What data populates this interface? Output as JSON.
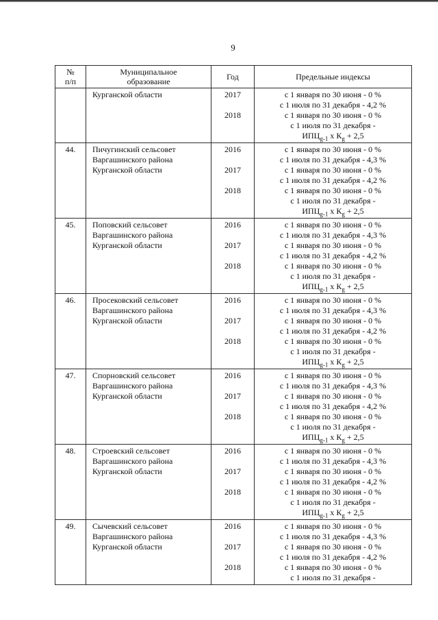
{
  "page": {
    "number": "9"
  },
  "table": {
    "headers": {
      "num_line1": "№",
      "num_line2": "п/п",
      "municipality_line1": "Муниципальное",
      "municipality_line2": "образование",
      "year": "Год",
      "indices": "Предельные индексы"
    },
    "rows": [
      {
        "num": "",
        "municipality": [
          "Курганской области"
        ],
        "years": [
          "2017",
          "",
          "2018"
        ],
        "lines": [
          "с 1 января по 30 июня - 0 %",
          "с 1 июля по 31 декабря - 4,2 %",
          "с 1 января по 30 июня - 0 %",
          "с 1 июля по 31 декабря -",
          {
            "formula": [
              {
                "t": "ИПЦ"
              },
              {
                "t": "g-1",
                "sub": true
              },
              {
                "t": " х К"
              },
              {
                "t": "g",
                "sub": true
              },
              {
                "t": " + 2,5"
              }
            ]
          }
        ]
      },
      {
        "num": "44.",
        "municipality": [
          "Пичугинский сельсовет",
          "Варгашинского района",
          "Курганской области"
        ],
        "years": [
          "2016",
          "",
          "2017",
          "",
          "2018"
        ],
        "lines": [
          "с 1 января по 30 июня - 0 %",
          "с 1 июля по 31 декабря - 4,3 %",
          "с 1 января по 30 июня - 0 %",
          "с 1 июля по 31 декабря - 4,2 %",
          "с 1 января по 30 июня - 0 %",
          "с 1 июля по 31 декабря -",
          {
            "formula": [
              {
                "t": "ИПЦ"
              },
              {
                "t": "g-1",
                "sub": true
              },
              {
                "t": " х К"
              },
              {
                "t": "g",
                "sub": true
              },
              {
                "t": " + 2,5"
              }
            ]
          }
        ]
      },
      {
        "num": "45.",
        "municipality": [
          "Поповский сельсовет",
          "Варгашинского района",
          "Курганской области"
        ],
        "years": [
          "2016",
          "",
          "2017",
          "",
          "2018"
        ],
        "lines": [
          "с 1 января по 30 июня - 0 %",
          "с 1 июля по 31 декабря - 4,3 %",
          "с 1 января по 30 июня - 0 %",
          "с 1 июля по 31 декабря - 4,2 %",
          "с 1 января по 30 июня - 0 %",
          "с 1 июля по 31 декабря -",
          {
            "formula": [
              {
                "t": "ИПЦ"
              },
              {
                "t": "g-1",
                "sub": true
              },
              {
                "t": " х К"
              },
              {
                "t": "g",
                "sub": true
              },
              {
                "t": " + 2,5"
              }
            ]
          }
        ]
      },
      {
        "num": "46.",
        "municipality": [
          "Просековский сельсовет",
          "Варгашинского района",
          "Курганской области"
        ],
        "years": [
          "2016",
          "",
          "2017",
          "",
          "2018"
        ],
        "lines": [
          "с 1 января по 30 июня - 0 %",
          "с 1 июля по 31 декабря - 4,3 %",
          "с 1 января по 30 июня - 0 %",
          "с 1 июля по 31 декабря - 4,2 %",
          "с 1 января по 30 июня - 0 %",
          "с 1 июля по 31 декабря -",
          {
            "formula": [
              {
                "t": "ИПЦ"
              },
              {
                "t": "g-1",
                "sub": true
              },
              {
                "t": " х К"
              },
              {
                "t": "g",
                "sub": true
              },
              {
                "t": " + 2,5"
              }
            ]
          }
        ]
      },
      {
        "num": "47.",
        "municipality": [
          "Спорновский сельсовет",
          "Варгашинского района",
          "Курганской области"
        ],
        "years": [
          "2016",
          "",
          "2017",
          "",
          "2018"
        ],
        "lines": [
          "с 1 января по 30 июня - 0 %",
          "с 1 июля по 31 декабря - 4,3 %",
          "с 1 января по 30 июня - 0 %",
          "с 1 июля по 31 декабря - 4,2 %",
          "с 1 января по 30 июня - 0 %",
          "с 1 июля по 31 декабря -",
          {
            "formula": [
              {
                "t": "ИПЦ"
              },
              {
                "t": "g-1",
                "sub": true
              },
              {
                "t": " х К"
              },
              {
                "t": "g",
                "sub": true
              },
              {
                "t": " + 2,5"
              }
            ]
          }
        ]
      },
      {
        "num": "48.",
        "municipality": [
          "Строевский сельсовет",
          "Варгашинского района",
          "Курганской области"
        ],
        "years": [
          "2016",
          "",
          "2017",
          "",
          "2018"
        ],
        "lines": [
          "с 1 января по 30 июня - 0 %",
          "с 1 июля по 31 декабря - 4,3 %",
          "с 1 января по 30 июня - 0 %",
          "с 1 июля по 31 декабря - 4,2 %",
          "с 1 января по 30 июня - 0 %",
          "с 1 июля по 31 декабря -",
          {
            "formula": [
              {
                "t": "ИПЦ"
              },
              {
                "t": "g-1",
                "sub": true
              },
              {
                "t": " х К"
              },
              {
                "t": "g",
                "sub": true
              },
              {
                "t": " + 2,5"
              }
            ]
          }
        ]
      },
      {
        "num": "49.",
        "municipality": [
          "Сычевский сельсовет",
          "Варгашинского района",
          "Курганской области"
        ],
        "years": [
          "2016",
          "",
          "2017",
          "",
          "2018"
        ],
        "lines": [
          "с 1 января по 30 июня - 0 %",
          "с 1 июля по 31 декабря - 4,3 %",
          "с 1 января по 30 июня - 0 %",
          "с 1 июля по 31 декабря - 4,2 %",
          "с 1 января по 30 июня - 0 %",
          "с 1 июля по 31 декабря -"
        ]
      }
    ]
  }
}
